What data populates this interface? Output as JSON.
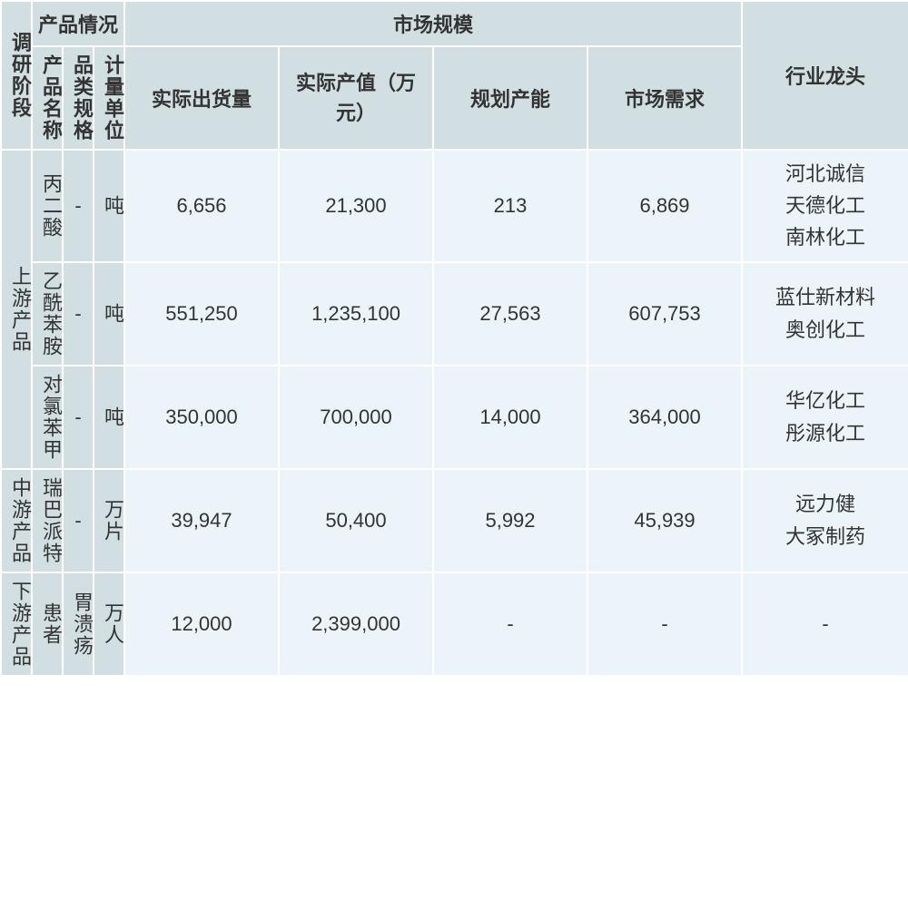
{
  "headers": {
    "research_stage": "调研阶段",
    "product_status": "产品情况",
    "market_scale": "市场规模",
    "product_name": "产品名称",
    "category_spec": "品类规格",
    "unit": "计量单位",
    "actual_shipment": "实际出货量",
    "actual_output_value": "实际产值（万元）",
    "planned_capacity": "规划产能",
    "market_demand": "市场需求",
    "industry_leader": "行业龙头"
  },
  "stages": {
    "upstream": "上游产品",
    "midstream": "中游产品",
    "downstream": "下游产品"
  },
  "rows": [
    {
      "name": "丙二酸",
      "spec": "-",
      "unit": "吨",
      "shipment": "6,656",
      "output_value": "21,300",
      "capacity": "213",
      "demand": "6,869",
      "leaders": [
        "河北诚信",
        "天德化工",
        "南林化工"
      ]
    },
    {
      "name": "乙酰苯胺",
      "spec": "-",
      "unit": "吨",
      "shipment": "551,250",
      "output_value": "1,235,100",
      "capacity": "27,563",
      "demand": "607,753",
      "leaders": [
        "蓝仕新材料",
        "奥创化工"
      ]
    },
    {
      "name": "对氯苯甲",
      "spec": "-",
      "unit": "吨",
      "shipment": "350,000",
      "output_value": "700,000",
      "capacity": "14,000",
      "demand": "364,000",
      "leaders": [
        "华亿化工",
        "彤源化工"
      ]
    },
    {
      "name": "瑞巴派特",
      "spec": "-",
      "unit": "万片",
      "shipment": "39,947",
      "output_value": "50,400",
      "capacity": "5,992",
      "demand": "45,939",
      "leaders": [
        "远力健",
        "大冢制药"
      ]
    },
    {
      "name": "患者",
      "spec": "胃溃疡",
      "unit": "万人",
      "shipment": "12,000",
      "output_value": "2,399,000",
      "capacity": "-",
      "demand": "-",
      "leaders": [
        "-"
      ]
    }
  ],
  "colors": {
    "header_bg": "#d2dfe2",
    "data_bg": "#ebf4f8",
    "border": "#ffffff",
    "text": "#333333"
  }
}
